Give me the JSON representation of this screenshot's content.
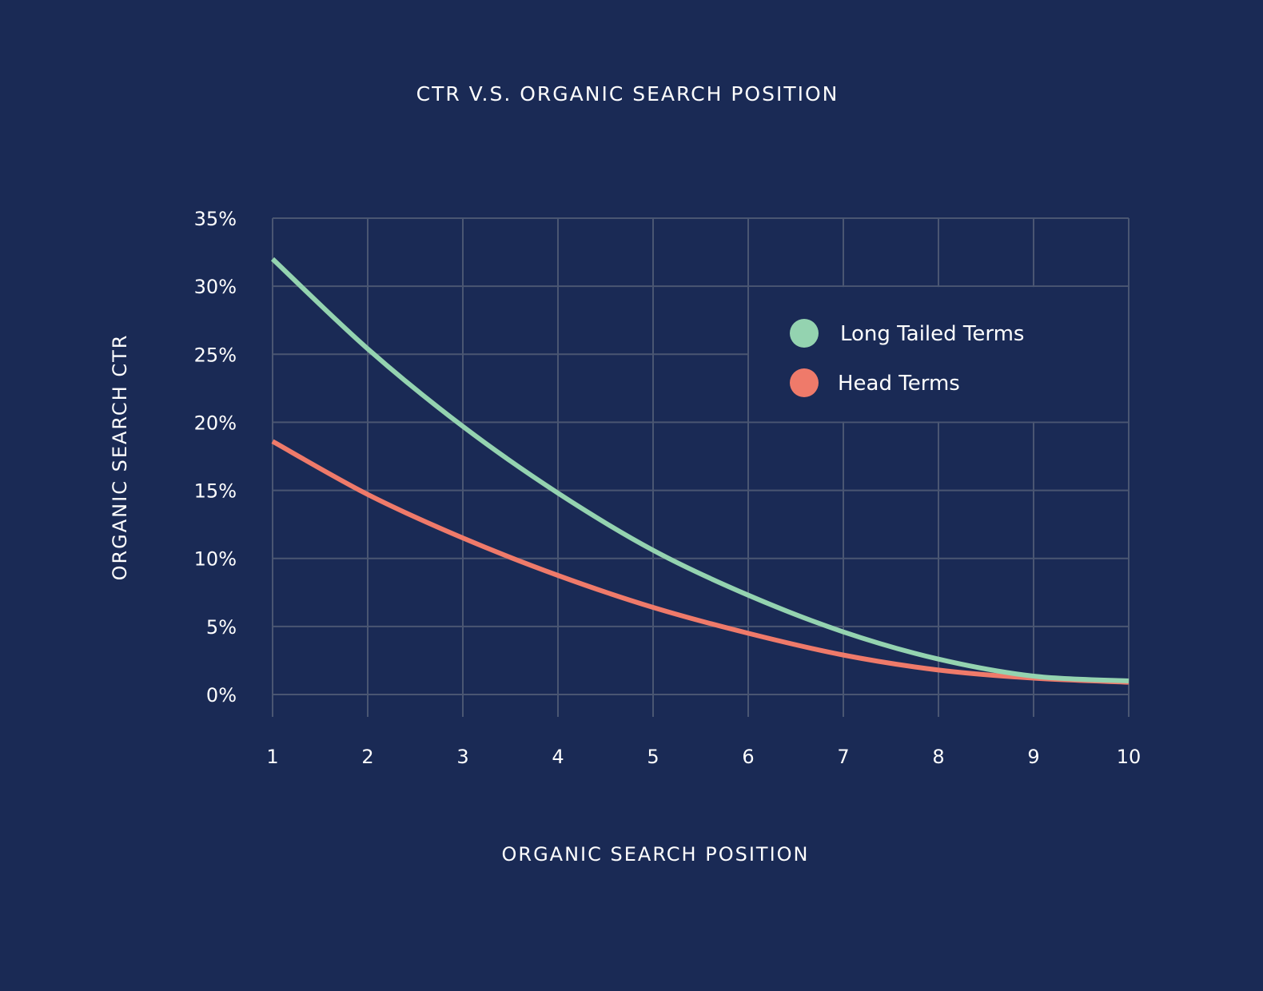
{
  "chart_data": {
    "type": "line",
    "title": "CTR V.S. ORGANIC SEARCH POSITION",
    "xlabel": "ORGANIC SEARCH POSITION",
    "ylabel": "ORGANIC SEARCH CTR",
    "x": [
      1,
      2,
      3,
      4,
      5,
      6,
      7,
      8,
      9,
      10
    ],
    "x_tick_labels": [
      "1",
      "2",
      "3",
      "4",
      "5",
      "6",
      "7",
      "8",
      "9",
      "10"
    ],
    "y_ticks": [
      0,
      5,
      10,
      15,
      20,
      25,
      30,
      35
    ],
    "y_tick_labels": [
      "0%",
      "5%",
      "10%",
      "15%",
      "20%",
      "25%",
      "30%",
      "35%"
    ],
    "xlim": [
      1,
      10
    ],
    "ylim": [
      0,
      35
    ],
    "grid": true,
    "legend_position": "top-right",
    "colors": {
      "background": "#1a2a55",
      "grid": "#4a5672"
    },
    "series": [
      {
        "name": "Long Tailed Terms",
        "color": "#94d3b0",
        "values": [
          32.0,
          25.4,
          19.7,
          14.8,
          10.6,
          7.3,
          4.6,
          2.6,
          1.35,
          1.0
        ]
      },
      {
        "name": "Head Terms",
        "color": "#ef7a6a",
        "values": [
          18.6,
          14.7,
          11.5,
          8.75,
          6.4,
          4.5,
          2.9,
          1.8,
          1.2,
          0.9
        ]
      }
    ]
  }
}
